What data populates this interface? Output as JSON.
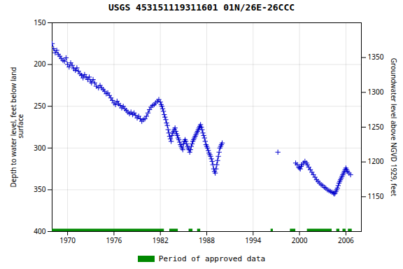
{
  "chart_data": {
    "type": "line",
    "title": "USGS 453151119311601 01N/26E-26CCC",
    "ylabel": "Depth to water level, feet below land\n surface",
    "y2label": "Groundwater level above NGVD 1929, feet",
    "xlim": [
      1968,
      2008
    ],
    "ylim": [
      400,
      150
    ],
    "y2lim": [
      1100,
      1400
    ],
    "xticks": [
      1970,
      1976,
      1982,
      1988,
      1994,
      2000,
      2006
    ],
    "yticks": [
      150,
      200,
      250,
      300,
      350,
      400
    ],
    "y2ticks": [
      1150,
      1200,
      1250,
      1300,
      1350
    ],
    "grid": true,
    "legend": "bottom",
    "series": [
      {
        "color": "#0000cc",
        "line_style": "dashed",
        "marker": "plus",
        "x": [
          1968.0,
          1968.2,
          1968.4,
          1968.6,
          1968.8,
          1969.0,
          1969.2,
          1969.4,
          1969.6,
          1969.8,
          1970.0,
          1970.2,
          1970.4,
          1970.6,
          1970.8,
          1971.0,
          1971.2,
          1971.4,
          1971.6,
          1971.8,
          1972.0,
          1972.2,
          1972.4,
          1972.6,
          1972.8,
          1973.0,
          1973.1,
          1973.3,
          1973.5,
          1973.7,
          1974.0,
          1974.2,
          1974.4,
          1974.6,
          1974.8,
          1975.0,
          1975.2,
          1975.4,
          1975.6,
          1975.8,
          1976.0,
          1976.2,
          1976.4,
          1976.6,
          1976.8,
          1977.0,
          1977.2,
          1977.4,
          1977.6,
          1977.8,
          1978.0,
          1978.2,
          1978.4,
          1978.6,
          1978.8,
          1979.0,
          1979.2,
          1979.4,
          1979.6,
          1979.8,
          1980.0,
          1980.2,
          1980.4,
          1980.6,
          1980.8,
          1981.0,
          1981.2,
          1981.4,
          1981.6,
          1981.8,
          1982.0,
          1982.1,
          1982.2,
          1982.3,
          1982.4,
          1982.5,
          1982.6,
          1982.7,
          1982.8,
          1982.9,
          1983.0,
          1983.1,
          1983.2,
          1983.3,
          1983.4,
          1983.5,
          1983.6,
          1983.7,
          1983.8,
          1983.9,
          1984.0,
          1984.1,
          1984.2,
          1984.3,
          1984.4,
          1984.5,
          1984.6,
          1984.7,
          1984.8,
          1984.9,
          1985.0,
          1985.1,
          1985.2,
          1985.3,
          1985.4,
          1985.5,
          1985.6,
          1985.7,
          1985.8,
          1985.9,
          1986.0,
          1986.1,
          1986.2,
          1986.3,
          1986.4,
          1986.5,
          1986.6,
          1986.7,
          1986.8,
          1986.9,
          1987.0,
          1987.1,
          1987.2,
          1987.3,
          1987.4,
          1987.5,
          1987.6,
          1987.7,
          1987.8,
          1987.9,
          1988.0,
          1988.1,
          1988.2,
          1988.3,
          1988.4,
          1988.5,
          1988.6,
          1988.7,
          1988.8,
          1988.9,
          1989.0,
          1989.1,
          1989.2,
          1989.3,
          1989.4,
          1989.5,
          1989.6,
          1989.7,
          1989.8,
          1989.9,
          1990.0
        ],
        "values": [
          175,
          181,
          186,
          183,
          188,
          190,
          193,
          195,
          196,
          192,
          200,
          203,
          198,
          201,
          205,
          207,
          204,
          208,
          211,
          213,
          216,
          212,
          215,
          218,
          215,
          220,
          222,
          218,
          222,
          226,
          228,
          225,
          228,
          230,
          232,
          235,
          234,
          237,
          240,
          243,
          246,
          248,
          244,
          247,
          249,
          252,
          250,
          253,
          255,
          257,
          259,
          257,
          260,
          258,
          261,
          264,
          262,
          265,
          268,
          266,
          265,
          262,
          258,
          254,
          251,
          249,
          248,
          246,
          244,
          242,
          245,
          248,
          250,
          253,
          256,
          260,
          263,
          266,
          270,
          273,
          278,
          282,
          286,
          289,
          292,
          285,
          282,
          280,
          278,
          276,
          280,
          283,
          285,
          288,
          290,
          293,
          296,
          298,
          300,
          302,
          295,
          292,
          290,
          292,
          295,
          298,
          300,
          302,
          305,
          302,
          298,
          295,
          292,
          290,
          288,
          286,
          284,
          282,
          280,
          278,
          276,
          274,
          272,
          275,
          278,
          282,
          285,
          288,
          292,
          296,
          298,
          300,
          303,
          306,
          308,
          310,
          313,
          316,
          320,
          325,
          328,
          330,
          325,
          320,
          315,
          310,
          305,
          300,
          298,
          296,
          294
        ]
      },
      {
        "color": "#0000cc",
        "line_style": "none",
        "marker": "plus",
        "x": [
          1997.2
        ],
        "values": [
          305
        ]
      },
      {
        "color": "#0000cc",
        "line_style": "dashed",
        "marker": "plus",
        "x": [
          1999.5,
          1999.7,
          1999.9,
          2000.0,
          2000.1,
          2000.2,
          2000.3,
          2000.5,
          2000.7,
          2000.9,
          2001.0,
          2001.2,
          2001.4,
          2001.6,
          2001.8,
          2002.0,
          2002.2,
          2002.4,
          2002.6,
          2002.8,
          2003.0,
          2003.2,
          2003.4,
          2003.6,
          2003.8,
          2004.0,
          2004.2,
          2004.4,
          2004.5,
          2004.6,
          2004.7,
          2004.8,
          2004.9,
          2005.0,
          2005.1,
          2005.2,
          2005.3,
          2005.4,
          2005.5,
          2005.6,
          2005.7,
          2005.8,
          2005.9,
          2006.0,
          2006.1,
          2006.2,
          2006.4,
          2006.6
        ],
        "values": [
          318,
          320,
          323,
          324,
          325,
          322,
          320,
          318,
          316,
          318,
          320,
          323,
          326,
          329,
          332,
          335,
          338,
          340,
          342,
          344,
          345,
          347,
          348,
          350,
          351,
          352,
          353,
          354,
          355,
          354,
          352,
          350,
          348,
          345,
          342,
          340,
          338,
          336,
          334,
          332,
          330,
          328,
          326,
          324,
          326,
          328,
          330,
          332
        ]
      }
    ],
    "approved_periods": {
      "name": "Period of approved data",
      "color": "#008800",
      "ranges": [
        [
          1968.0,
          1982.5
        ],
        [
          1983.2,
          1984.3
        ],
        [
          1985.7,
          1986.2
        ],
        [
          1986.8,
          1987.2
        ],
        [
          1996.3,
          1996.6
        ],
        [
          1998.8,
          1999.5
        ],
        [
          2001.0,
          2004.2
        ],
        [
          2004.8,
          2005.2
        ],
        [
          2005.6,
          2006.0
        ],
        [
          2006.3,
          2006.8
        ]
      ]
    }
  }
}
